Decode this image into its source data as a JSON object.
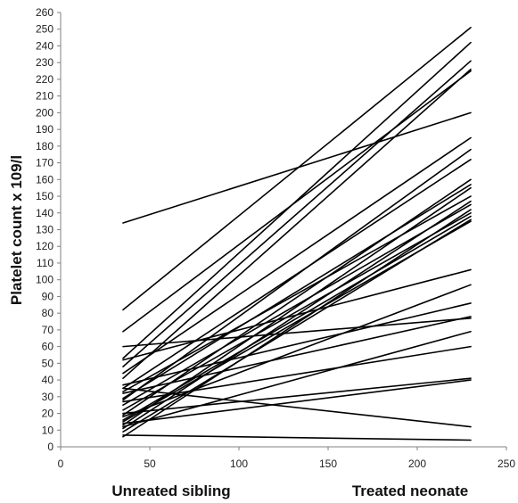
{
  "chart_data": {
    "type": "line",
    "ylabel": "Platelet count x 109/l",
    "x_category_labels": [
      "Unreated sibling",
      "Treated neonate"
    ],
    "x_category_positions": [
      35,
      230
    ],
    "xlim": [
      0,
      250
    ],
    "ylim": [
      0,
      260
    ],
    "x_ticks": [
      0,
      50,
      100,
      150,
      200,
      250
    ],
    "y_ticks": [
      0,
      10,
      20,
      30,
      40,
      50,
      60,
      70,
      80,
      90,
      100,
      110,
      120,
      130,
      140,
      150,
      160,
      170,
      180,
      190,
      200,
      210,
      220,
      230,
      240,
      250,
      260
    ],
    "grid": false,
    "line_color": "#000000",
    "pairs": [
      [
        134,
        200
      ],
      [
        82,
        251
      ],
      [
        69,
        225
      ],
      [
        60,
        77
      ],
      [
        53,
        242
      ],
      [
        52,
        106
      ],
      [
        48,
        231
      ],
      [
        44,
        185
      ],
      [
        41,
        226
      ],
      [
        37,
        86
      ],
      [
        35,
        12
      ],
      [
        35,
        172
      ],
      [
        33,
        150
      ],
      [
        32,
        78
      ],
      [
        29,
        157
      ],
      [
        28,
        178
      ],
      [
        27,
        60
      ],
      [
        25,
        145
      ],
      [
        22,
        140
      ],
      [
        20,
        41
      ],
      [
        19,
        160
      ],
      [
        18,
        97
      ],
      [
        16,
        138
      ],
      [
        15,
        135
      ],
      [
        14,
        40
      ],
      [
        13,
        155
      ],
      [
        12,
        69
      ],
      [
        11,
        147
      ],
      [
        9,
        136
      ],
      [
        7,
        4
      ],
      [
        6,
        142
      ]
    ]
  }
}
